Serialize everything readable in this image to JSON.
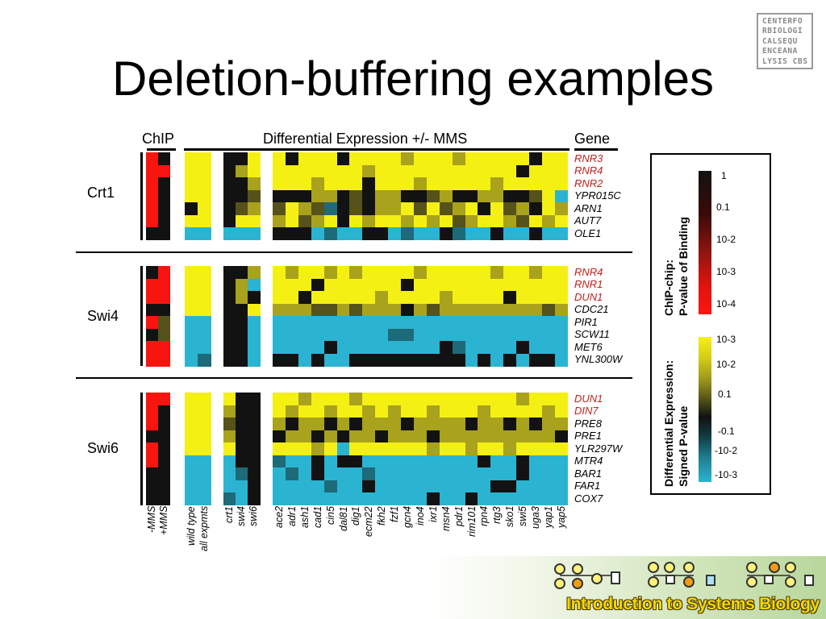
{
  "title": "Deletion-buffering examples",
  "logo_lines": [
    "CENTERFO",
    "RBIOLOGI",
    "CALSEQU",
    "ENCEANA",
    "LYSIS CBS"
  ],
  "banner_text": "Introduction to Systems Biology",
  "headers": {
    "chip": "ChIP",
    "de": "Differential Expression +/- MMS",
    "gene": "Gene"
  },
  "chip_conditions": [
    "-MMS",
    "+MMS"
  ],
  "wt_conditions": [
    "wild type",
    "all expmts"
  ],
  "mut_conditions": [
    "crt1",
    "swi4",
    "swi6"
  ],
  "deletion_conditions": [
    "ace2",
    "adr1",
    "ash1",
    "cad1",
    "cin5",
    "dal81",
    "dig1",
    "ecm22",
    "fkh2",
    "fzf1",
    "gcn4",
    "ino4",
    "ixr1",
    "msn4",
    "pdr1",
    "rim101",
    "rpn4",
    "rtg3",
    "sko1",
    "swi5",
    "uga3",
    "yap1",
    "yap5"
  ],
  "groups": [
    {
      "tf": "Crt1",
      "genes": [
        {
          "name": "RNR3",
          "highlight": true
        },
        {
          "name": "RNR4",
          "highlight": true
        },
        {
          "name": "RNR2",
          "highlight": true
        },
        {
          "name": "YPR015C",
          "highlight": false
        },
        {
          "name": "ARN1",
          "highlight": false
        },
        {
          "name": "AUT7",
          "highlight": false
        },
        {
          "name": "OLE1",
          "highlight": false
        }
      ],
      "chip": [
        [
          "R",
          "K"
        ],
        [
          "R",
          "R"
        ],
        [
          "R",
          "K"
        ],
        [
          "R",
          "K"
        ],
        [
          "R",
          "K"
        ],
        [
          "R",
          "K"
        ],
        [
          "K",
          "K"
        ]
      ],
      "wt": [
        [
          "Y",
          "Y"
        ],
        [
          "Y",
          "Y"
        ],
        [
          "Y",
          "Y"
        ],
        [
          "Y",
          "Y"
        ],
        [
          "K",
          "Y"
        ],
        [
          "Y",
          "Y"
        ],
        [
          "C",
          "C"
        ]
      ],
      "mut": [
        [
          "K",
          "K",
          "Y"
        ],
        [
          "K",
          "O",
          "Y"
        ],
        [
          "K",
          "K",
          "O"
        ],
        [
          "K",
          "K",
          "D"
        ],
        [
          "K",
          "D",
          "O"
        ],
        [
          "K",
          "Y",
          "Y"
        ],
        [
          "C",
          "C",
          "C"
        ]
      ],
      "del": [
        "YKYYYKYYYYOYYYOYYYYYKYY",
        "YYYYYYYOYYYYYYYYYYYKYYY",
        "YYYOYYYKYYYOYYYYYOYYYYY",
        "KKKOOKDKOOKKDOKKOOKKDYC",
        "DYODTKDKOOYDYDOYKYDOKYO",
        "OYDOYKYOYYOYOYDOYYODYOY",
        "KKKCTCCKKCTCCKTCCKCCKCC"
      ]
    },
    {
      "tf": "Swi4",
      "genes": [
        {
          "name": "RNR4",
          "highlight": true
        },
        {
          "name": "RNR1",
          "highlight": true
        },
        {
          "name": "DUN1",
          "highlight": true
        },
        {
          "name": "CDC21",
          "highlight": false
        },
        {
          "name": "PIR1",
          "highlight": false
        },
        {
          "name": "SCW11",
          "highlight": false
        },
        {
          "name": "MET6",
          "highlight": false
        },
        {
          "name": "YNL300W",
          "highlight": false
        }
      ],
      "chip": [
        [
          "K",
          "R"
        ],
        [
          "R",
          "R"
        ],
        [
          "R",
          "R"
        ],
        [
          "K",
          "K"
        ],
        [
          "R",
          "D"
        ],
        [
          "K",
          "D"
        ],
        [
          "R",
          "R"
        ],
        [
          "R",
          "R"
        ]
      ],
      "wt": [
        [
          "Y",
          "Y"
        ],
        [
          "Y",
          "Y"
        ],
        [
          "Y",
          "Y"
        ],
        [
          "Y",
          "Y"
        ],
        [
          "C",
          "C"
        ],
        [
          "C",
          "C"
        ],
        [
          "C",
          "C"
        ],
        [
          "C",
          "T"
        ]
      ],
      "mut": [
        [
          "K",
          "K",
          "O"
        ],
        [
          "K",
          "O",
          "C"
        ],
        [
          "K",
          "O",
          "K"
        ],
        [
          "K",
          "K",
          "Y"
        ],
        [
          "K",
          "K",
          "C"
        ],
        [
          "K",
          "K",
          "C"
        ],
        [
          "K",
          "K",
          "C"
        ],
        [
          "K",
          "K",
          "C"
        ]
      ],
      "del": [
        "YOYYOYOYYYYOYYYYYOYYOYY",
        "YYYKYYYYYYKYYYYYYYYYYYY",
        "YYKYYYYYOYYYYOYYYYKYYYY",
        "OOODDODOOOKODOOOOOOOODO",
        "CCCCCCCCCCCCCCCCCCCCCCC",
        "CCCCCCCCCTTCCCCCCCCCCCC",
        "CCCCKCCCCCCCCKTCCCCKCCC",
        "KKCKCCKKKKKKKKKCKCKCKKC"
      ]
    },
    {
      "tf": "Swi6",
      "genes": [
        {
          "name": "DUN1",
          "highlight": true
        },
        {
          "name": "DIN7",
          "highlight": true
        },
        {
          "name": "PRE8",
          "highlight": false
        },
        {
          "name": "PRE1",
          "highlight": false
        },
        {
          "name": "YLR297W",
          "highlight": false
        },
        {
          "name": "MTR4",
          "highlight": false
        },
        {
          "name": "BAR1",
          "highlight": false
        },
        {
          "name": "FAR1",
          "highlight": false
        },
        {
          "name": "COX7",
          "highlight": false
        }
      ],
      "chip": [
        [
          "R",
          "R"
        ],
        [
          "R",
          "K"
        ],
        [
          "R",
          "K"
        ],
        [
          "K",
          "K"
        ],
        [
          "R",
          "K"
        ],
        [
          "R",
          "K"
        ],
        [
          "K",
          "K"
        ],
        [
          "K",
          "K"
        ],
        [
          "K",
          "K"
        ]
      ],
      "wt": [
        [
          "Y",
          "Y"
        ],
        [
          "Y",
          "Y"
        ],
        [
          "Y",
          "Y"
        ],
        [
          "Y",
          "Y"
        ],
        [
          "Y",
          "Y"
        ],
        [
          "C",
          "C"
        ],
        [
          "C",
          "C"
        ],
        [
          "C",
          "C"
        ],
        [
          "C",
          "C"
        ]
      ],
      "mut": [
        [
          "Y",
          "K",
          "K"
        ],
        [
          "O",
          "K",
          "K"
        ],
        [
          "D",
          "K",
          "K"
        ],
        [
          "O",
          "K",
          "K"
        ],
        [
          "Y",
          "K",
          "K"
        ],
        [
          "C",
          "K",
          "K"
        ],
        [
          "C",
          "T",
          "K"
        ],
        [
          "C",
          "C",
          "K"
        ],
        [
          "T",
          "C",
          "K"
        ]
      ],
      "del": [
        "YYOYYYOYYYYYYYYYYYYOYYY",
        "YOYYOYYOYOYYOYYYOYYYYOY",
        "OKOOKOKOOOKOOOOKOOKOKOO",
        "KOOKOKOOKOOOKOOOOOOOOOK",
        "YYYOYCYYYYYYOYYOYYOYYYY",
        "TCCKCKKCCCCCCCCCKCCKCCC",
        "CTCKCCCTCCCCCCCCCCCKCCC",
        "CCCCTCCKCCCCCCCCCKKCCCC",
        "CCCCCCCCCCCCKCCKCCCCCCC"
      ]
    }
  ],
  "legend": {
    "chip_title": [
      "ChIP-chip:",
      "P-value of Binding"
    ],
    "chip_ticks": [
      "1",
      "0.1",
      "10-2",
      "10-3",
      "10-4"
    ],
    "de_title": [
      "Differential Expression:",
      "Signed P-value"
    ],
    "de_ticks": [
      "10-3",
      "10-2",
      "0.1",
      "-0.1",
      "-10-2",
      "-10-3"
    ]
  },
  "colors": {
    "Y": "#f5f014",
    "O": "#a9a21c",
    "D": "#55521a",
    "K": "#121212",
    "T": "#1d6a78",
    "C": "#2bb4d2",
    "R": "#f8140f",
    "M": "#7a1410",
    "highlight_text": "#c0221c",
    "normal_text": "#000000"
  }
}
